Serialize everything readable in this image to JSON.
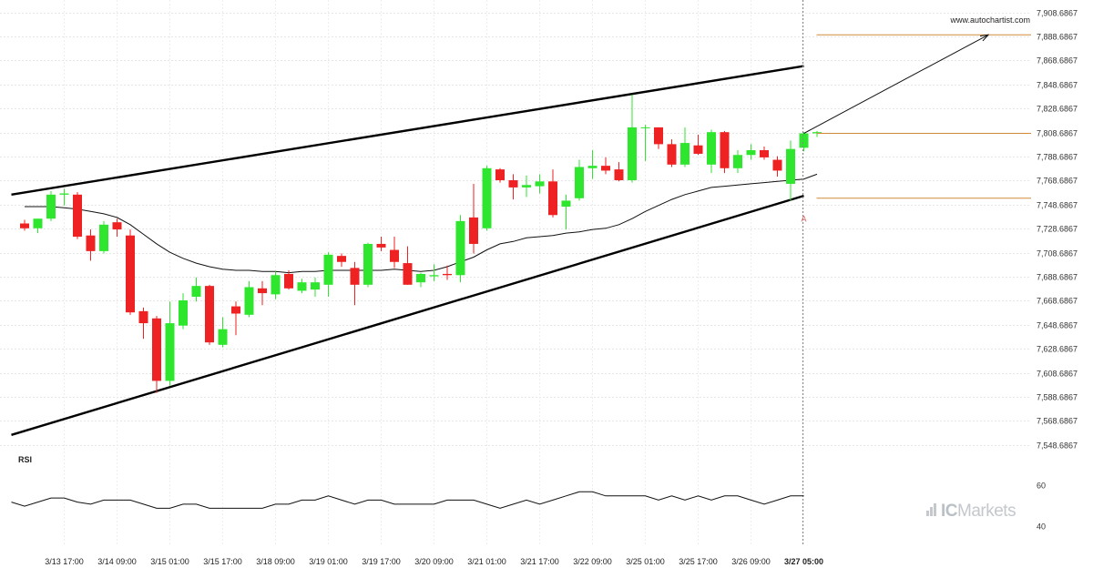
{
  "site": "www.autochartist.com",
  "watermark": {
    "brand_prefix": "IC",
    "brand_suffix": "Markets"
  },
  "chart_data": {
    "type": "candlestick",
    "y_tick_labels": [
      "7,908.6867",
      "7,888.6867",
      "7,868.6867",
      "7,848.6867",
      "7,828.6867",
      "7,808.6867",
      "7,788.6867",
      "7,768.6867",
      "7,748.6867",
      "7,728.6867",
      "7,708.6867",
      "7,688.6867",
      "7,668.6867",
      "7,648.6867",
      "7,628.6867",
      "7,608.6867",
      "7,588.6867",
      "7,568.6867",
      "7,548.6867"
    ],
    "ylim": [
      7538.6867,
      7913.6867
    ],
    "x_tick_labels": [
      {
        "label": "3/13 17:00",
        "index": 3
      },
      {
        "label": "3/14 09:00",
        "index": 7
      },
      {
        "label": "3/15 01:00",
        "index": 11
      },
      {
        "label": "3/15 17:00",
        "index": 15
      },
      {
        "label": "3/18 09:00",
        "index": 19
      },
      {
        "label": "3/19 01:00",
        "index": 23
      },
      {
        "label": "3/19 17:00",
        "index": 27
      },
      {
        "label": "3/20 09:00",
        "index": 31
      },
      {
        "label": "3/21 01:00",
        "index": 35
      },
      {
        "label": "3/21 17:00",
        "index": 39
      },
      {
        "label": "3/22 09:00",
        "index": 43
      },
      {
        "label": "3/25 01:00",
        "index": 47
      },
      {
        "label": "3/25 17:00",
        "index": 51
      },
      {
        "label": "3/26 09:00",
        "index": 55
      },
      {
        "label": "3/27 05:00",
        "index": 59,
        "bold": true
      }
    ],
    "candles": [
      {
        "o": 7733,
        "h": 7736,
        "l": 7727,
        "c": 7729
      },
      {
        "o": 7729,
        "h": 7737,
        "l": 7725,
        "c": 7737
      },
      {
        "o": 7737,
        "h": 7760,
        "l": 7735,
        "c": 7757
      },
      {
        "o": 7757,
        "h": 7762,
        "l": 7748,
        "c": 7758
      },
      {
        "o": 7757,
        "h": 7759,
        "l": 7720,
        "c": 7722
      },
      {
        "o": 7723,
        "h": 7728,
        "l": 7702,
        "c": 7710
      },
      {
        "o": 7710,
        "h": 7735,
        "l": 7708,
        "c": 7732
      },
      {
        "o": 7734,
        "h": 7737,
        "l": 7722,
        "c": 7728
      },
      {
        "o": 7723,
        "h": 7728,
        "l": 7657,
        "c": 7659
      },
      {
        "o": 7660,
        "h": 7663,
        "l": 7637,
        "c": 7650
      },
      {
        "o": 7654,
        "h": 7656,
        "l": 7592,
        "c": 7602
      },
      {
        "o": 7602,
        "h": 7668,
        "l": 7598,
        "c": 7650
      },
      {
        "o": 7648,
        "h": 7675,
        "l": 7645,
        "c": 7669
      },
      {
        "o": 7672,
        "h": 7688,
        "l": 7668,
        "c": 7681
      },
      {
        "o": 7681,
        "h": 7682,
        "l": 7632,
        "c": 7634
      },
      {
        "o": 7632,
        "h": 7655,
        "l": 7630,
        "c": 7645
      },
      {
        "o": 7664,
        "h": 7668,
        "l": 7640,
        "c": 7658
      },
      {
        "o": 7657,
        "h": 7685,
        "l": 7655,
        "c": 7680
      },
      {
        "o": 7679,
        "h": 7685,
        "l": 7665,
        "c": 7675
      },
      {
        "o": 7674,
        "h": 7693,
        "l": 7670,
        "c": 7690
      },
      {
        "o": 7691,
        "h": 7694,
        "l": 7678,
        "c": 7679
      },
      {
        "o": 7677,
        "h": 7687,
        "l": 7675,
        "c": 7684
      },
      {
        "o": 7678,
        "h": 7688,
        "l": 7672,
        "c": 7684
      },
      {
        "o": 7682,
        "h": 7709,
        "l": 7672,
        "c": 7707
      },
      {
        "o": 7706,
        "h": 7708,
        "l": 7697,
        "c": 7701
      },
      {
        "o": 7696,
        "h": 7701,
        "l": 7665,
        "c": 7682
      },
      {
        "o": 7682,
        "h": 7717,
        "l": 7680,
        "c": 7716
      },
      {
        "o": 7716,
        "h": 7722,
        "l": 7710,
        "c": 7713
      },
      {
        "o": 7711,
        "h": 7722,
        "l": 7696,
        "c": 7701
      },
      {
        "o": 7700,
        "h": 7714,
        "l": 7682,
        "c": 7682
      },
      {
        "o": 7684,
        "h": 7692,
        "l": 7680,
        "c": 7691
      },
      {
        "o": 7689,
        "h": 7699,
        "l": 7685,
        "c": 7690
      },
      {
        "o": 7691,
        "h": 7698,
        "l": 7686,
        "c": 7690
      },
      {
        "o": 7690,
        "h": 7740,
        "l": 7684,
        "c": 7735
      },
      {
        "o": 7738,
        "h": 7766,
        "l": 7708,
        "c": 7716
      },
      {
        "o": 7729,
        "h": 7781,
        "l": 7727,
        "c": 7779
      },
      {
        "o": 7778,
        "h": 7779,
        "l": 7767,
        "c": 7769
      },
      {
        "o": 7769,
        "h": 7774,
        "l": 7753,
        "c": 7763
      },
      {
        "o": 7763,
        "h": 7773,
        "l": 7755,
        "c": 7765
      },
      {
        "o": 7764,
        "h": 7774,
        "l": 7758,
        "c": 7768
      },
      {
        "o": 7768,
        "h": 7778,
        "l": 7738,
        "c": 7740
      },
      {
        "o": 7747,
        "h": 7757,
        "l": 7728,
        "c": 7752
      },
      {
        "o": 7754,
        "h": 7786,
        "l": 7752,
        "c": 7780
      },
      {
        "o": 7779,
        "h": 7794,
        "l": 7770,
        "c": 7781
      },
      {
        "o": 7781,
        "h": 7788,
        "l": 7774,
        "c": 7777
      },
      {
        "o": 7778,
        "h": 7784,
        "l": 7768,
        "c": 7769
      },
      {
        "o": 7769,
        "h": 7840,
        "l": 7767,
        "c": 7813
      },
      {
        "o": 7813,
        "h": 7815,
        "l": 7785,
        "c": 7813
      },
      {
        "o": 7813,
        "h": 7813,
        "l": 7795,
        "c": 7799
      },
      {
        "o": 7799,
        "h": 7803,
        "l": 7780,
        "c": 7782
      },
      {
        "o": 7782,
        "h": 7813,
        "l": 7780,
        "c": 7800
      },
      {
        "o": 7798,
        "h": 7807,
        "l": 7790,
        "c": 7791
      },
      {
        "o": 7782,
        "h": 7811,
        "l": 7775,
        "c": 7809
      },
      {
        "o": 7809,
        "h": 7810,
        "l": 7775,
        "c": 7779
      },
      {
        "o": 7779,
        "h": 7794,
        "l": 7775,
        "c": 7790
      },
      {
        "o": 7790,
        "h": 7799,
        "l": 7786,
        "c": 7794
      },
      {
        "o": 7794,
        "h": 7797,
        "l": 7786,
        "c": 7788
      },
      {
        "o": 7786,
        "h": 7789,
        "l": 7772,
        "c": 7777
      },
      {
        "o": 7766,
        "h": 7802,
        "l": 7752,
        "c": 7795
      },
      {
        "o": 7796,
        "h": 7809,
        "l": 7793,
        "c": 7808
      },
      {
        "o": 7808,
        "h": 7810,
        "l": 7805,
        "c": 7809
      }
    ],
    "moving_average": [
      7747,
      7747,
      7747,
      7746,
      7745,
      7743,
      7741,
      7738,
      7732,
      7724,
      7716,
      7709,
      7704,
      7700,
      7697,
      7695,
      7694,
      7694,
      7693,
      7693,
      7692,
      7693,
      7693,
      7694,
      7694,
      7694,
      7694,
      7694,
      7695,
      7694,
      7693,
      7694,
      7697,
      7701,
      7705,
      7711,
      7716,
      7718,
      7721,
      7722,
      7723,
      7725,
      7726,
      7728,
      7729,
      7732,
      7737,
      7743,
      7748,
      7753,
      7757,
      7760,
      7763,
      7764,
      7765,
      7766,
      7767,
      7768,
      7769,
      7770,
      7774
    ],
    "wedge": {
      "upper": {
        "start": {
          "index": -1,
          "value": 7757
        },
        "end": {
          "index": 59,
          "value": 7864
        }
      },
      "lower": {
        "start": {
          "index": -1,
          "value": 7557
        },
        "end": {
          "index": 59,
          "value": 7756
        }
      }
    },
    "levels": [
      {
        "name": "target",
        "value": 7890
      },
      {
        "name": "entry",
        "value": 7808
      },
      {
        "name": "stop",
        "value": 7754
      }
    ],
    "forecast_arrow": {
      "from": {
        "index": 59,
        "value": 7808
      },
      "to": {
        "index": 72,
        "value": 7890
      }
    },
    "marker": {
      "label": "A",
      "index": 59,
      "value": 7745
    },
    "current_bar_index": 59,
    "rsi": {
      "label": "RSI",
      "y_tick_labels": [
        "60",
        "40"
      ],
      "ylim": [
        35,
        66
      ],
      "values": [
        52,
        50,
        52,
        54,
        54,
        52,
        51,
        53,
        53,
        53,
        51,
        49,
        49,
        51,
        51,
        49,
        49,
        49,
        49,
        49,
        51,
        51,
        53,
        53,
        55,
        53,
        51,
        53,
        53,
        51,
        51,
        51,
        51,
        53,
        53,
        53,
        51,
        49,
        51,
        53,
        51,
        53,
        55,
        57,
        57,
        55,
        55,
        55,
        55,
        53,
        55,
        53,
        55,
        53,
        55,
        55,
        53,
        51,
        53,
        55,
        55
      ]
    }
  }
}
